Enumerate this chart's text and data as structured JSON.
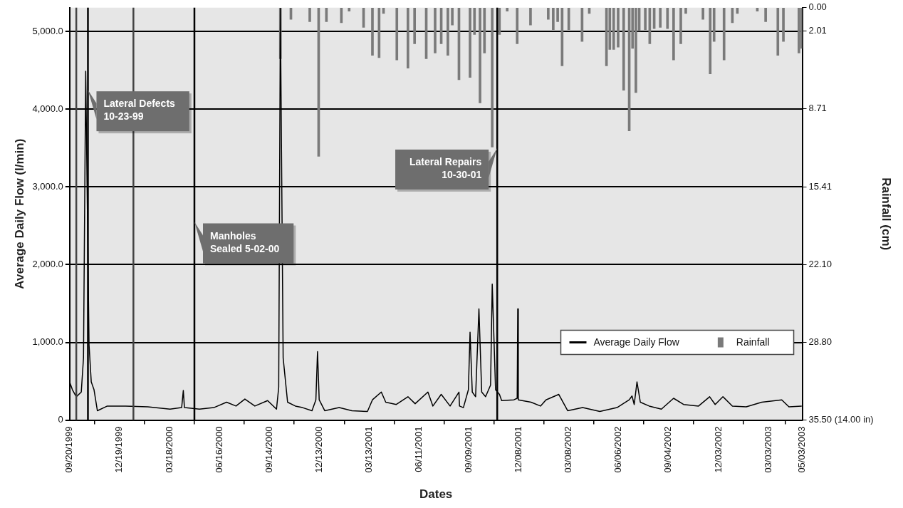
{
  "chart_data": {
    "type": "line",
    "xlabel": "Dates",
    "ylabel": "Average Daily Flow (l/min)",
    "y2label": "Rainfall (cm)",
    "xlim": [
      "1999-09-20",
      "2003-05-03"
    ],
    "xticks": [
      {
        "value": "1999-09-20",
        "label": "09/20/1999"
      },
      {
        "value": "1999-12-19",
        "label": "12/19/1999"
      },
      {
        "value": "2000-03-18",
        "label": "03/18/2000"
      },
      {
        "value": "2000-06-16",
        "label": "06/16/2000"
      },
      {
        "value": "2000-09-14",
        "label": "09/14/2000"
      },
      {
        "value": "2000-12-13",
        "label": "12/13/2000"
      },
      {
        "value": "2001-03-13",
        "label": "03/13/2001"
      },
      {
        "value": "2001-06-11",
        "label": "06/11/2001"
      },
      {
        "value": "2001-09-09",
        "label": "09/09/2001"
      },
      {
        "value": "2001-12-08",
        "label": "12/08/2001"
      },
      {
        "value": "2002-03-08",
        "label": "03/08/2002"
      },
      {
        "value": "2002-06-06",
        "label": "06/06/2002"
      },
      {
        "value": "2002-09-04",
        "label": "09/04/2002"
      },
      {
        "value": "2002-12-03",
        "label": "12/03/2002"
      },
      {
        "value": "2003-03-03",
        "label": "03/03/2003"
      },
      {
        "value": "2003-05-03",
        "label": "05/03/2003"
      }
    ],
    "ylim": [
      0,
      5308
    ],
    "yticks": [
      0,
      {
        "value": 1000,
        "label": "1,000.0"
      },
      {
        "value": 2000,
        "label": "2,000.0"
      },
      {
        "value": 3000,
        "label": "3,000.0"
      },
      {
        "value": 4000,
        "label": "4,000.0"
      },
      {
        "value": 5000,
        "label": "5,000.0"
      }
    ],
    "y2lim": [
      35.5,
      0
    ],
    "y2ticks": [
      {
        "value": 0,
        "label": "0.00"
      },
      2.01,
      8.71,
      15.41,
      {
        "value": 22.1,
        "label": "22.10"
      },
      {
        "value": 28.8,
        "label": "28.80"
      },
      {
        "value": 35.5,
        "label": "35.50 (14.00 in)"
      }
    ],
    "grid": "y",
    "legend": "bottom right",
    "ref_lines": [
      {
        "axis": "x",
        "value": "1999-10-02",
        "color": "#444444"
      },
      {
        "axis": "x",
        "value": "1999-10-23",
        "color": "#000000"
      },
      {
        "axis": "x",
        "value": "2000-01-13",
        "color": "#444444"
      },
      {
        "axis": "x",
        "value": "2000-05-02",
        "color": "#000000"
      },
      {
        "axis": "x",
        "value": "2001-10-30",
        "color": "#000000"
      }
    ],
    "annotations": [
      {
        "text": "Lateral Defects\n10-23-99",
        "x": "1999-10-23",
        "y": 4250
      },
      {
        "text": "Manholes\nSealed 5-02-00",
        "x": "2000-05-02",
        "y": 2550
      },
      {
        "text": "Lateral Repairs\n10-30-01",
        "x": "2001-10-30",
        "y": 3500
      }
    ],
    "series": [
      {
        "name": "Average Daily Flow",
        "color": "#000000",
        "x": [
          "1999-09-20",
          "1999-09-25",
          "1999-10-02",
          "1999-10-11",
          "1999-10-15",
          "1999-10-19",
          "1999-10-25",
          "1999-10-29",
          "1999-11-03",
          "1999-11-09",
          "1999-11-27",
          "1999-12-30",
          "2000-02-08",
          "2000-03-19",
          "2000-04-09",
          "2000-04-12",
          "2000-04-14",
          "2000-05-11",
          "2000-06-06",
          "2000-06-29",
          "2000-07-16",
          "2000-08-01",
          "2000-08-19",
          "2000-09-11",
          "2000-09-27",
          "2000-10-01",
          "2000-10-04",
          "2000-10-09",
          "2000-10-17",
          "2000-10-31",
          "2000-11-13",
          "2000-11-30",
          "2000-12-07",
          "2000-12-10",
          "2000-12-13",
          "2000-12-23",
          "2001-01-18",
          "2001-02-10",
          "2001-03-10",
          "2001-03-19",
          "2001-04-04",
          "2001-04-12",
          "2001-05-01",
          "2001-05-22",
          "2001-06-04",
          "2001-06-27",
          "2001-07-06",
          "2001-07-21",
          "2001-08-06",
          "2001-08-22",
          "2001-08-23",
          "2001-08-30",
          "2001-09-08",
          "2001-09-11",
          "2001-09-15",
          "2001-09-21",
          "2001-09-27",
          "2001-10-02",
          "2001-10-09",
          "2001-10-18",
          "2001-10-21",
          "2001-10-27",
          "2001-11-03",
          "2001-11-07",
          "2001-11-29",
          "2001-12-05",
          "2001-12-06",
          "2001-12-07",
          "2001-12-30",
          "2002-01-16",
          "2002-01-26",
          "2002-02-18",
          "2002-03-06",
          "2002-04-02",
          "2002-05-03",
          "2002-06-03",
          "2002-06-25",
          "2002-06-30",
          "2002-07-04",
          "2002-07-09",
          "2002-07-15",
          "2002-07-31",
          "2002-08-22",
          "2002-09-13",
          "2002-10-01",
          "2002-10-28",
          "2002-11-17",
          "2002-11-27",
          "2002-12-11",
          "2002-12-28",
          "2003-01-22",
          "2003-02-19",
          "2003-03-27",
          "2003-04-09",
          "2003-05-02"
        ],
        "values": [
          490,
          390,
          300,
          360,
          800,
          4490,
          970,
          490,
          390,
          120,
          180,
          180,
          170,
          140,
          160,
          380,
          160,
          140,
          160,
          230,
          180,
          270,
          180,
          250,
          140,
          420,
          5300,
          800,
          230,
          180,
          160,
          120,
          260,
          880,
          260,
          120,
          160,
          120,
          110,
          260,
          360,
          230,
          200,
          300,
          210,
          360,
          180,
          330,
          180,
          360,
          180,
          160,
          390,
          1130,
          360,
          300,
          1430,
          360,
          300,
          450,
          1750,
          390,
          330,
          250,
          260,
          280,
          1430,
          260,
          230,
          180,
          260,
          330,
          120,
          160,
          110,
          160,
          260,
          310,
          200,
          490,
          230,
          180,
          140,
          280,
          200,
          180,
          300,
          200,
          300,
          180,
          170,
          230,
          260,
          170,
          180
        ]
      },
      {
        "name": "Rainfall",
        "type": "bar",
        "axis": "y2",
        "color": "#7a7a7a",
        "x": [
          "2000-10-04",
          "2000-10-23",
          "2000-11-26",
          "2000-12-12",
          "2000-12-26",
          "2001-01-22",
          "2001-02-05",
          "2001-03-03",
          "2001-03-19",
          "2001-03-31",
          "2001-04-08",
          "2001-05-02",
          "2001-05-22",
          "2001-06-03",
          "2001-06-24",
          "2001-07-10",
          "2001-07-21",
          "2001-08-02",
          "2001-08-10",
          "2001-08-22",
          "2001-09-11",
          "2001-09-19",
          "2001-09-29",
          "2001-10-07",
          "2001-10-21",
          "2001-11-03",
          "2001-11-17",
          "2001-12-05",
          "2001-12-29",
          "2002-01-30",
          "2002-02-08",
          "2002-02-16",
          "2002-02-24",
          "2002-03-08",
          "2002-04-01",
          "2002-04-14",
          "2002-05-15",
          "2002-05-21",
          "2002-05-28",
          "2002-06-05",
          "2002-06-15",
          "2002-06-25",
          "2002-07-01",
          "2002-07-07",
          "2002-07-13",
          "2002-07-24",
          "2002-08-01",
          "2002-08-09",
          "2002-08-20",
          "2002-09-02",
          "2002-09-13",
          "2002-09-26",
          "2002-10-05",
          "2002-11-05",
          "2002-11-18",
          "2002-11-25",
          "2002-12-13",
          "2002-12-28",
          "2003-01-06",
          "2003-02-11",
          "2003-02-26",
          "2003-03-20",
          "2003-03-30",
          "2003-04-27",
          "2003-05-02"
        ],
        "values": [
          4.4,
          1.0,
          1.2,
          12.8,
          1.2,
          1.3,
          0.3,
          1.7,
          4.1,
          4.3,
          0.5,
          4.5,
          5.2,
          3.1,
          4.4,
          3.9,
          3.1,
          4.1,
          1.5,
          6.2,
          6.0,
          2.3,
          8.2,
          3.9,
          12.0,
          2.3,
          0.3,
          3.1,
          1.5,
          1.0,
          1.9,
          1.2,
          5.0,
          1.9,
          2.9,
          0.5,
          5.0,
          3.6,
          3.6,
          3.4,
          7.1,
          10.6,
          3.5,
          7.3,
          2.0,
          1.9,
          3.1,
          1.8,
          1.7,
          1.8,
          4.5,
          3.1,
          0.5,
          1.0,
          5.7,
          2.9,
          4.5,
          1.3,
          0.5,
          0.3,
          1.2,
          4.1,
          2.9,
          3.9,
          3.5
        ]
      }
    ]
  }
}
